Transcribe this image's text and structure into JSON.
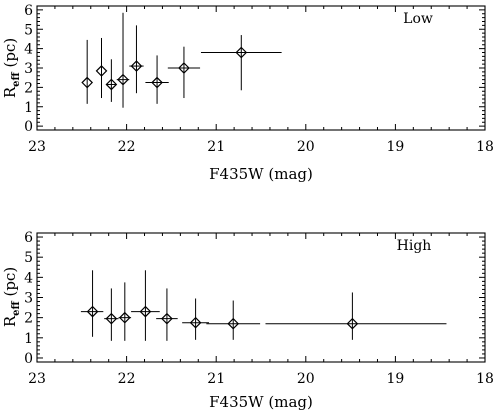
{
  "chart_data": [
    {
      "type": "scatter",
      "panel_label": "Low",
      "xlabel": "F435W (mag)",
      "ylabel_main": "R",
      "ylabel_sub": "eff",
      "ylabel_unit": " (pc)",
      "xlim": [
        23,
        18
      ],
      "ylim": [
        -0.2,
        6.2
      ],
      "xticks": [
        23,
        22,
        21,
        20,
        19,
        18
      ],
      "yticks": [
        0,
        1,
        2,
        3,
        4,
        5,
        6
      ],
      "points": [
        {
          "x": 22.44,
          "y": 2.25,
          "xerr_lo": 0.0,
          "xerr_hi": 0.0,
          "yerr_lo": 1.15,
          "yerr_hi": 4.45
        },
        {
          "x": 22.28,
          "y": 2.85,
          "xerr_lo": 0.0,
          "xerr_hi": 0.0,
          "yerr_lo": 1.45,
          "yerr_hi": 4.55
        },
        {
          "x": 22.17,
          "y": 2.15,
          "xerr_lo": 0.05,
          "xerr_hi": 0.05,
          "yerr_lo": 1.25,
          "yerr_hi": 3.45
        },
        {
          "x": 22.04,
          "y": 2.4,
          "xerr_lo": 0.07,
          "xerr_hi": 0.07,
          "yerr_lo": 0.95,
          "yerr_hi": 5.85
        },
        {
          "x": 21.89,
          "y": 3.1,
          "xerr_lo": 0.08,
          "xerr_hi": 0.08,
          "yerr_lo": 1.7,
          "yerr_hi": 5.2
        },
        {
          "x": 21.66,
          "y": 2.25,
          "xerr_lo": 0.13,
          "xerr_hi": 0.13,
          "yerr_lo": 1.15,
          "yerr_hi": 3.65
        },
        {
          "x": 21.36,
          "y": 3.0,
          "xerr_lo": 0.18,
          "xerr_hi": 0.18,
          "yerr_lo": 1.45,
          "yerr_hi": 4.1
        },
        {
          "x": 20.72,
          "y": 3.8,
          "xerr_lo": 0.45,
          "xerr_hi": 0.45,
          "yerr_lo": 1.85,
          "yerr_hi": 4.7
        }
      ]
    },
    {
      "type": "scatter",
      "panel_label": "High",
      "xlabel": "F435W (mag)",
      "ylabel_main": "R",
      "ylabel_sub": "eff",
      "ylabel_unit": " (pc)",
      "xlim": [
        23,
        18
      ],
      "ylim": [
        -0.2,
        6.2
      ],
      "xticks": [
        23,
        22,
        21,
        20,
        19,
        18
      ],
      "yticks": [
        0,
        1,
        2,
        3,
        4,
        5,
        6
      ],
      "points": [
        {
          "x": 22.38,
          "y": 2.3,
          "xerr_lo": 0.13,
          "xerr_hi": 0.12,
          "yerr_lo": 1.05,
          "yerr_hi": 4.35
        },
        {
          "x": 22.17,
          "y": 1.95,
          "xerr_lo": 0.08,
          "xerr_hi": 0.08,
          "yerr_lo": 0.85,
          "yerr_hi": 3.45
        },
        {
          "x": 22.02,
          "y": 2.0,
          "xerr_lo": 0.07,
          "xerr_hi": 0.07,
          "yerr_lo": 0.85,
          "yerr_hi": 3.75
        },
        {
          "x": 21.79,
          "y": 2.3,
          "xerr_lo": 0.16,
          "xerr_hi": 0.16,
          "yerr_lo": 0.85,
          "yerr_hi": 4.35
        },
        {
          "x": 21.55,
          "y": 1.95,
          "xerr_lo": 0.12,
          "xerr_hi": 0.12,
          "yerr_lo": 0.85,
          "yerr_hi": 3.45
        },
        {
          "x": 21.23,
          "y": 1.75,
          "xerr_lo": 0.15,
          "xerr_hi": 0.15,
          "yerr_lo": 0.9,
          "yerr_hi": 2.95
        },
        {
          "x": 20.81,
          "y": 1.7,
          "xerr_lo": 0.3,
          "xerr_hi": 0.3,
          "yerr_lo": 0.9,
          "yerr_hi": 2.85
        },
        {
          "x": 19.48,
          "y": 1.7,
          "xerr_lo": 0.97,
          "xerr_hi": 1.05,
          "yerr_lo": 0.9,
          "yerr_hi": 3.25
        }
      ]
    }
  ]
}
